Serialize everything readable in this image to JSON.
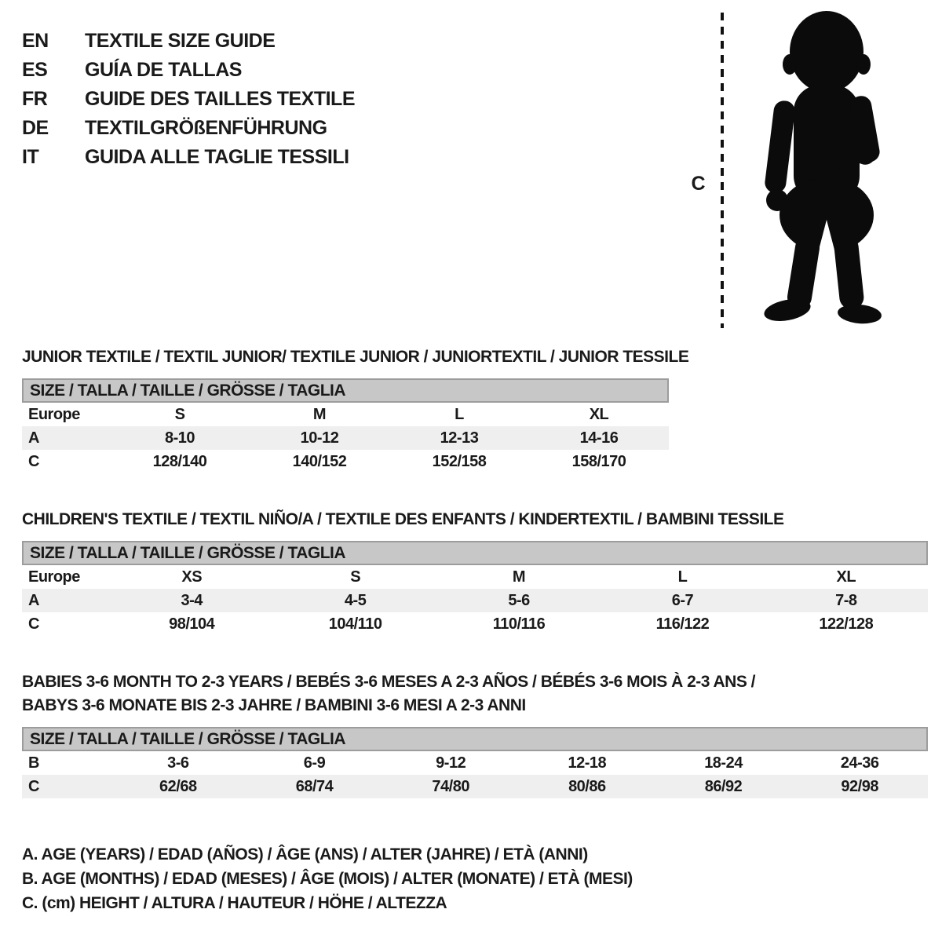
{
  "colors": {
    "ink": "#1a1a1a",
    "header_bar_bg": "#c7c7c7",
    "header_bar_border": "#9c9c9c",
    "row_shaded_bg": "#efefef",
    "silhouette": "#0b0b0b"
  },
  "languages": [
    {
      "code": "EN",
      "label": "TEXTILE SIZE GUIDE"
    },
    {
      "code": "ES",
      "label": "GUÍA DE TALLAS"
    },
    {
      "code": "FR",
      "label": "GUIDE DES TAILLES TEXTILE"
    },
    {
      "code": "DE",
      "label": "TEXTILGRÖßENFÜHRUNG"
    },
    {
      "code": "IT",
      "label": "GUIDA ALLE TAGLIE TESSILI"
    }
  ],
  "figure": {
    "icon": "toddler-silhouette-icon",
    "measure_label": "C"
  },
  "sections": [
    {
      "id": "junior",
      "title_lines": [
        "JUNIOR TEXTILE / TEXTIL JUNIOR/ TEXTILE JUNIOR / JUNIORTEXTIL / JUNIOR TESSILE"
      ],
      "size_header": "SIZE / TALLA / TAILLE / GRÖSSE / TAGLIA",
      "rows": [
        {
          "label": "Europe",
          "values": [
            "S",
            "M",
            "L",
            "XL"
          ],
          "shaded": false
        },
        {
          "label": "A",
          "values": [
            "8-10",
            "10-12",
            "12-13",
            "14-16"
          ],
          "shaded": true
        },
        {
          "label": "C",
          "values": [
            "128/140",
            "140/152",
            "152/158",
            "158/170"
          ],
          "shaded": false
        }
      ]
    },
    {
      "id": "children",
      "title_lines": [
        "CHILDREN'S TEXTILE / TEXTIL NIÑO/A / TEXTILE DES ENFANTS / KINDERTEXTIL / BAMBINI TESSILE"
      ],
      "size_header": "SIZE / TALLA / TAILLE / GRÖSSE / TAGLIA",
      "rows": [
        {
          "label": "Europe",
          "values": [
            "XS",
            "S",
            "M",
            "L",
            "XL"
          ],
          "shaded": false
        },
        {
          "label": "A",
          "values": [
            "3-4",
            "4-5",
            "5-6",
            "6-7",
            "7-8"
          ],
          "shaded": true
        },
        {
          "label": "C",
          "values": [
            "98/104",
            "104/110",
            "110/116",
            "116/122",
            "122/128"
          ],
          "shaded": false
        }
      ]
    },
    {
      "id": "babies",
      "title_lines": [
        "BABIES 3-6 MONTH TO 2-3 YEARS / BEBÉS 3-6 MESES A 2-3 AÑOS / BÉBÉS 3-6 MOIS À 2-3 ANS /",
        "BABYS 3-6 MONATE BIS 2-3 JAHRE / BAMBINI 3-6 MESI A 2-3 ANNI"
      ],
      "size_header": "SIZE / TALLA / TAILLE / GRÖSSE / TAGLIA",
      "rows": [
        {
          "label": "B",
          "values": [
            "3-6",
            "6-9",
            "9-12",
            "12-18",
            "18-24",
            "24-36"
          ],
          "shaded": false
        },
        {
          "label": "C",
          "values": [
            "62/68",
            "68/74",
            "74/80",
            "80/86",
            "86/92",
            "92/98"
          ],
          "shaded": true
        }
      ]
    }
  ],
  "legend": [
    "A. AGE (YEARS) / EDAD (AÑOS) / ÂGE (ANS) / ALTER (JAHRE) / ETÀ (ANNI)",
    "B. AGE (MONTHS) / EDAD (MESES) / ÂGE (MOIS) / ALTER (MONATE) / ETÀ (MESI)",
    "C. (cm) HEIGHT / ALTURA / HAUTEUR / HÖHE / ALTEZZA"
  ]
}
